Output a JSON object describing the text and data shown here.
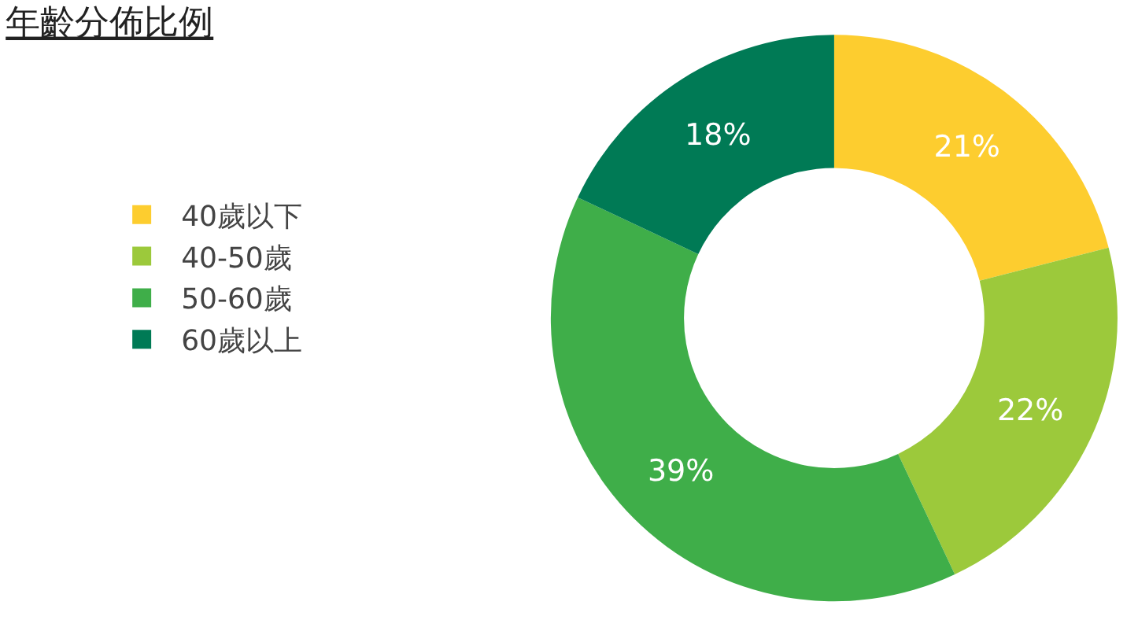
{
  "chart_data": {
    "type": "donut",
    "title": "年齡分佈比例",
    "categories": [
      "40歲以下",
      "40-50歲",
      "50-60歲",
      "60歲以上"
    ],
    "values": [
      21,
      22,
      39,
      18
    ],
    "colors": [
      "#fdcd2f",
      "#9cc93b",
      "#3fae49",
      "#007a55"
    ],
    "value_labels": [
      "21%",
      "22%",
      "39%",
      "18%"
    ],
    "legend": "left"
  }
}
